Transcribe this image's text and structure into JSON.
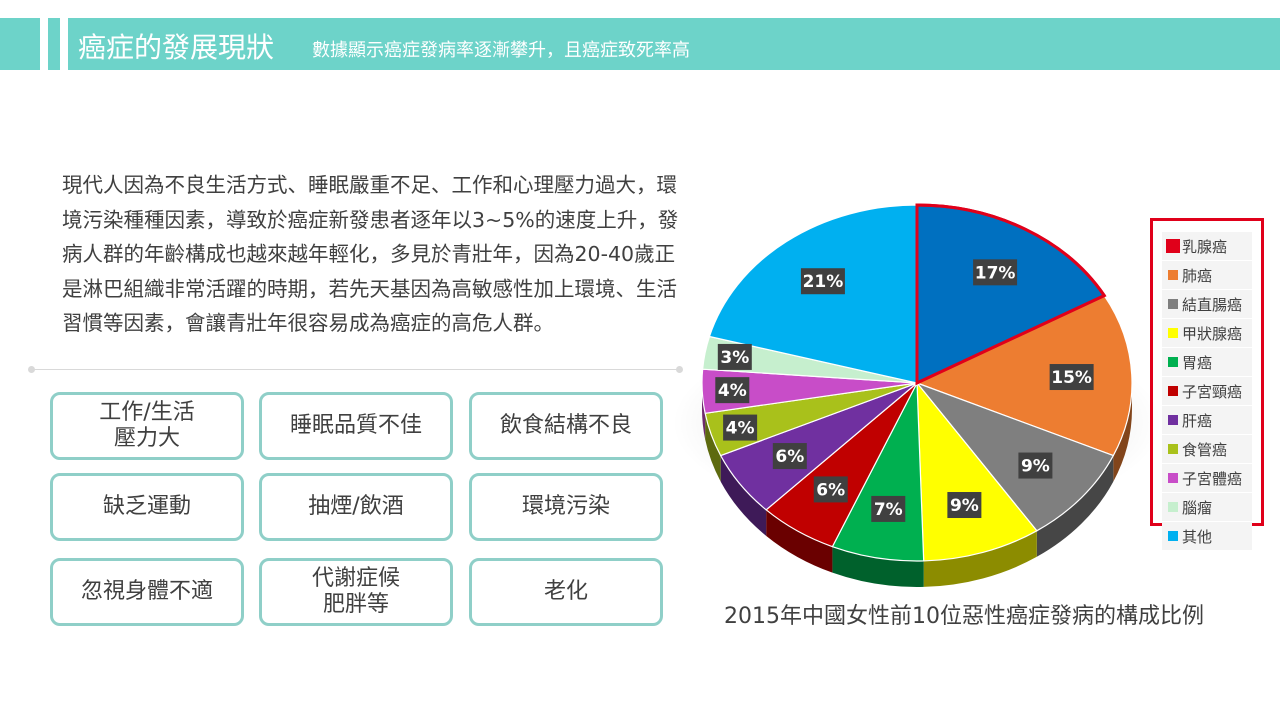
{
  "header": {
    "title": "癌症的發展現狀",
    "subtitle": "數據顯示癌症發病率逐漸攀升，且癌症致死率高"
  },
  "paragraph": "現代人因為不良生活方式、睡眠嚴重不足、工作和心理壓力過大，環境污染種種因素，導致於癌症新發患者逐年以3~5%的速度上升，發病人群的年齡構成也越來越年輕化，多見於青壯年，因為20-40歲正是淋巴組織非常活躍的時期，若先天基因為高敏感性加上環境、生活習慣等因素，會讓青壯年很容易成為癌症的高危人群。",
  "factors": [
    "工作/生活\n壓力大",
    "睡眠品質不佳",
    "飲食結構不良",
    "缺乏運動",
    "抽煙/飲酒",
    "環境污染",
    "忽視身體不適",
    "代謝症候\n肥胖等",
    "老化"
  ],
  "chart_data": {
    "type": "pie",
    "title": "2015年中國女性前10位惡性癌症發病的構成比例",
    "legend_position": "right",
    "highlighted": "乳腺癌",
    "slices": [
      {
        "label": "乳腺癌",
        "value": 17,
        "display": "17%",
        "color": "#0070c0"
      },
      {
        "label": "肺癌",
        "value": 15,
        "display": "15%",
        "color": "#ed7d31"
      },
      {
        "label": "結直腸癌",
        "value": 9,
        "display": "9%",
        "color": "#7f7f7f"
      },
      {
        "label": "甲狀腺癌",
        "value": 9,
        "display": "9%",
        "color": "#ffff00"
      },
      {
        "label": "胃癌",
        "value": 7,
        "display": "7%",
        "color": "#00b050"
      },
      {
        "label": "子宮頸癌",
        "value": 6,
        "display": "6%",
        "color": "#c00000"
      },
      {
        "label": "肝癌",
        "value": 6,
        "display": "6%",
        "color": "#7030a0"
      },
      {
        "label": "食管癌",
        "value": 4,
        "display": "4%",
        "color": "#a9c11b"
      },
      {
        "label": "子宮體癌",
        "value": 4,
        "display": "4%",
        "color": "#c84dc8"
      },
      {
        "label": "腦瘤",
        "value": 3,
        "display": "3%",
        "color": "#c6efce"
      },
      {
        "label": "其他",
        "value": 21,
        "display": "21%",
        "color": "#00b0f0"
      }
    ]
  }
}
